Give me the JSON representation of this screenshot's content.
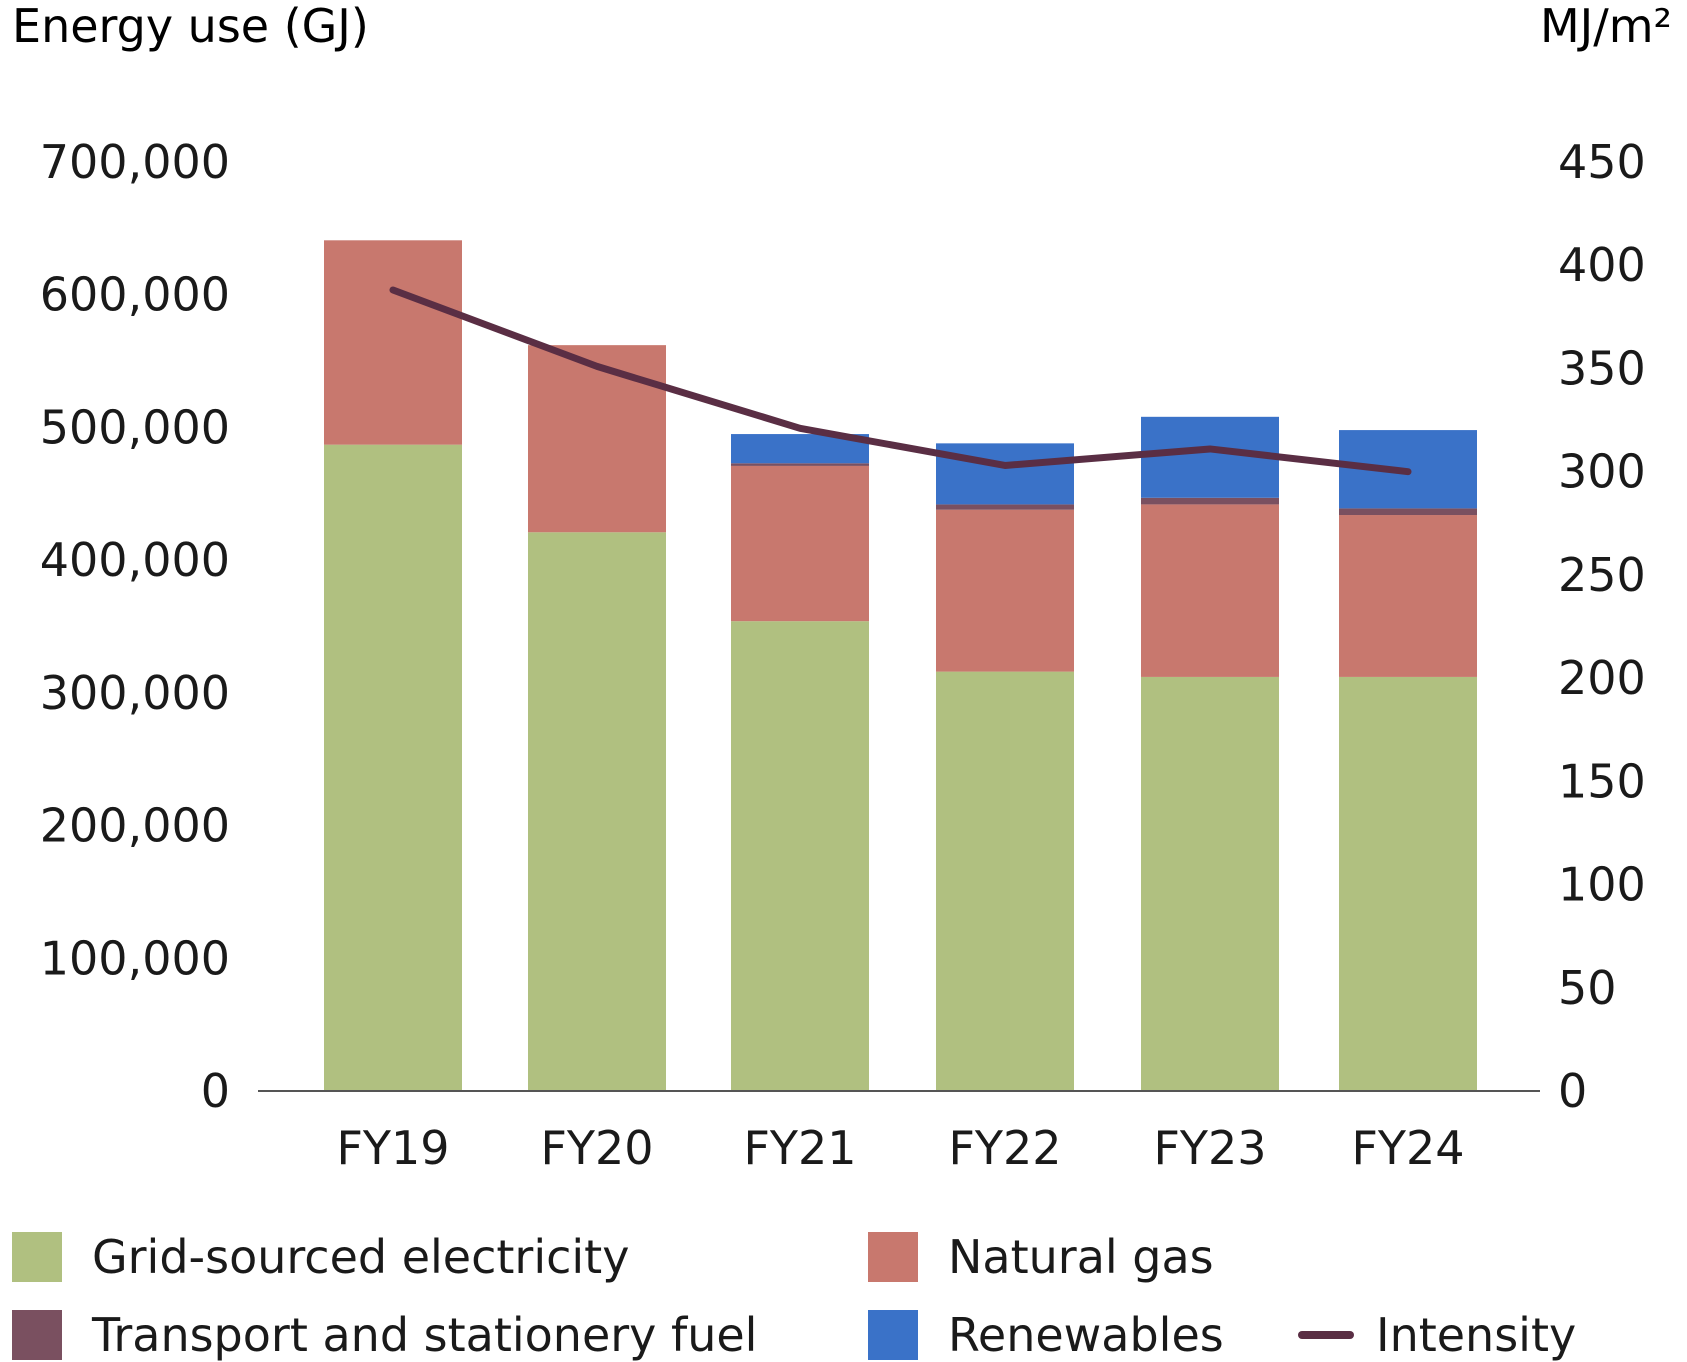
{
  "chart_data": {
    "type": "bar",
    "stacked": true,
    "title": "",
    "ylabel": "Energy use (GJ)",
    "y2label": "MJ/m²",
    "ylim": [
      0,
      700000
    ],
    "y2lim": [
      0,
      450
    ],
    "yticks": [
      0,
      100000,
      200000,
      300000,
      400000,
      500000,
      600000,
      700000
    ],
    "yticklabels": [
      "0",
      "100,000",
      "200,000",
      "300,000",
      "400,000",
      "500,000",
      "600,000",
      "700,000"
    ],
    "y2ticks": [
      0,
      50,
      100,
      150,
      200,
      250,
      300,
      350,
      400,
      450
    ],
    "y2ticklabels": [
      "0",
      "50",
      "100",
      "150",
      "200",
      "250",
      "300",
      "350",
      "400",
      "450"
    ],
    "categories": [
      "FY19",
      "FY20",
      "FY21",
      "FY22",
      "FY23",
      "FY24"
    ],
    "series": [
      {
        "name": "Grid-sourced electricity",
        "color": "#b0c080",
        "axis": "left",
        "kind": "bar",
        "values": [
          487000,
          421000,
          354000,
          316000,
          312000,
          312000
        ]
      },
      {
        "name": "Natural gas",
        "color": "#c8786e",
        "axis": "left",
        "kind": "bar",
        "values": [
          154000,
          141000,
          117000,
          122000,
          130000,
          122000
        ]
      },
      {
        "name": "Transport and stationery fuel",
        "color": "#7a5060",
        "axis": "left",
        "kind": "bar",
        "values": [
          0,
          0,
          2000,
          4000,
          5000,
          5000
        ]
      },
      {
        "name": "Renewables",
        "color": "#3a72c8",
        "axis": "left",
        "kind": "bar",
        "values": [
          0,
          0,
          22000,
          46000,
          61000,
          59000
        ]
      },
      {
        "name": "Intensity",
        "color": "#5a2e44",
        "axis": "right",
        "kind": "line",
        "values": [
          388,
          351,
          321,
          303,
          311,
          300
        ]
      }
    ],
    "legend_position": "bottom",
    "grid": false
  }
}
